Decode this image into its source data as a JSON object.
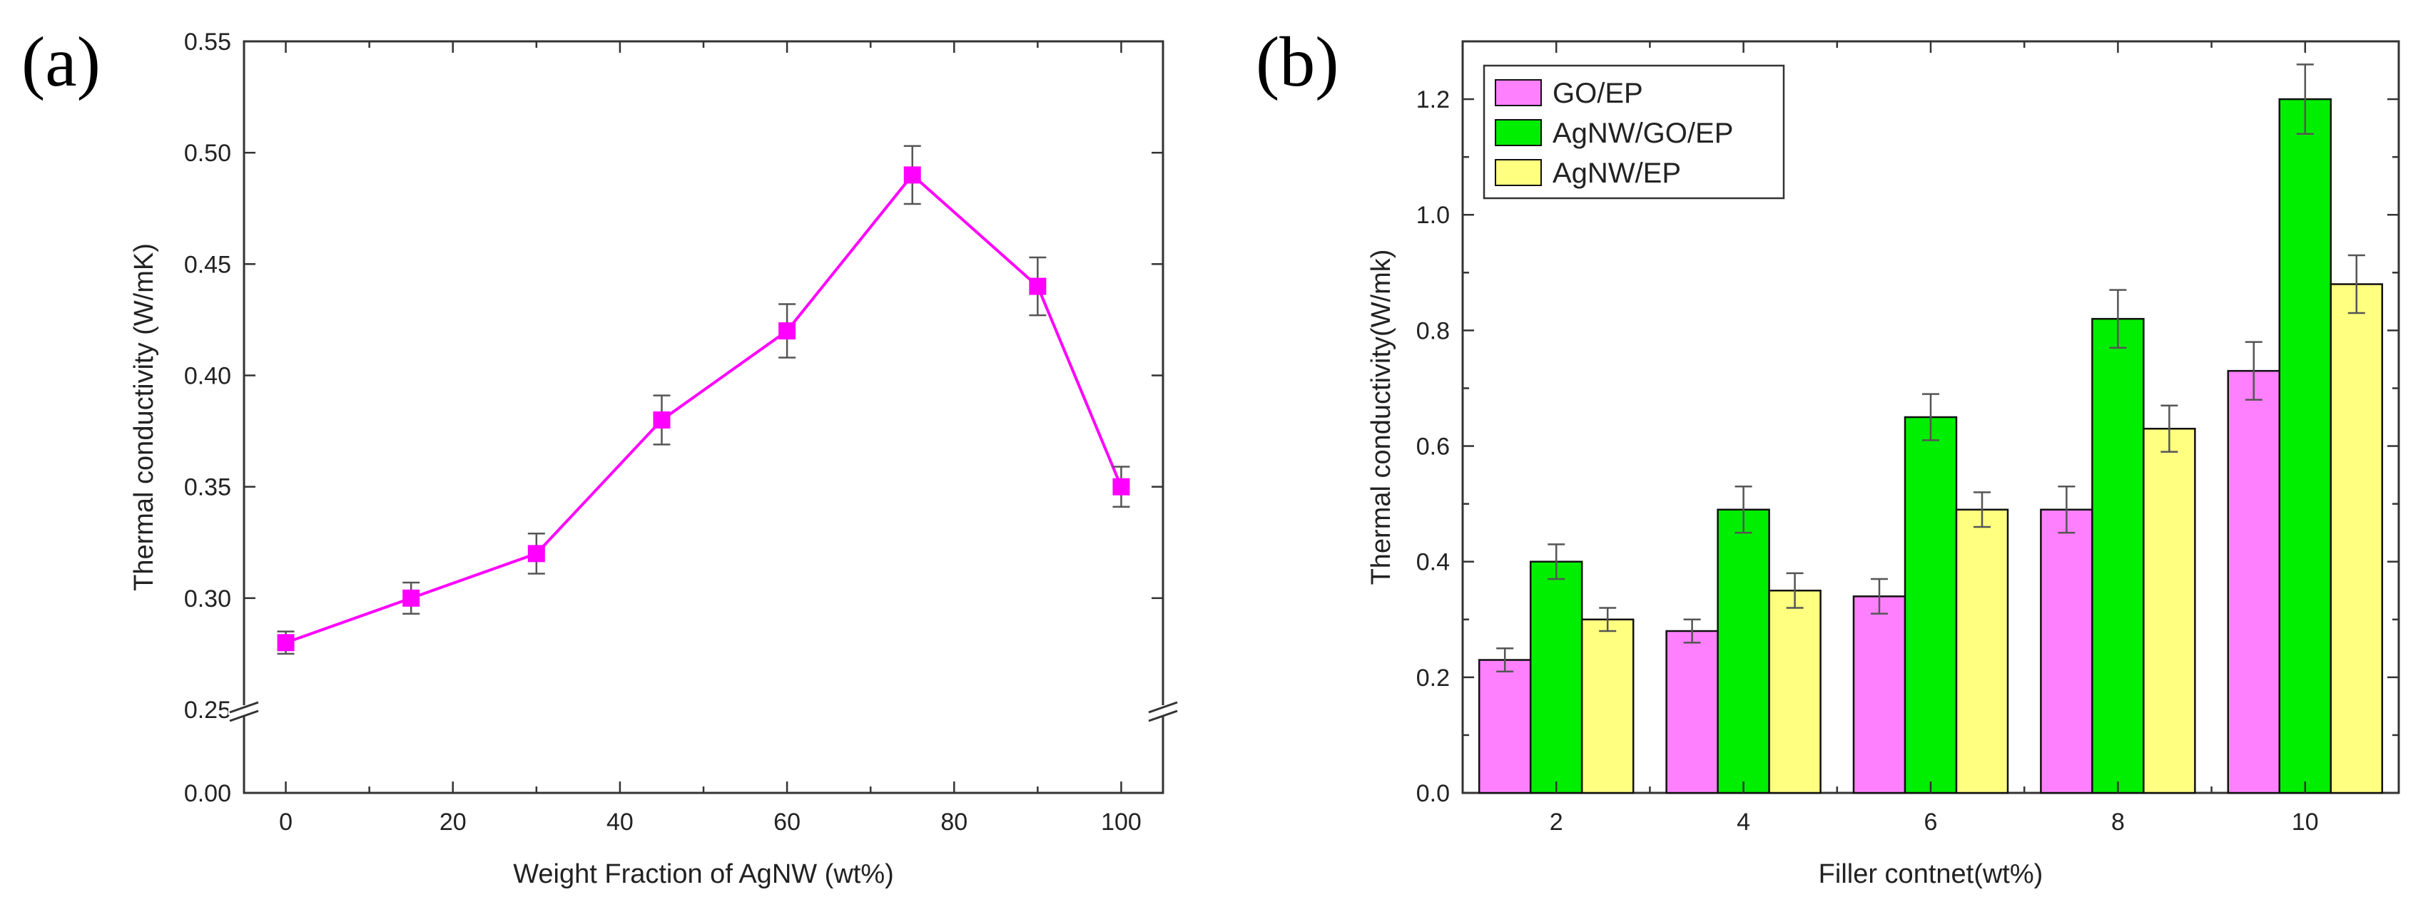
{
  "colors": {
    "series_a": "#ff00ff",
    "GO/EP": "#ff80ff",
    "AgNW/GO/EP": "#00ee00",
    "AgNW/EP": "#ffff80",
    "errorbar": "#555555"
  },
  "chart_data": [
    {
      "panel": "(a)",
      "type": "line",
      "xlabel": "Weight Fraction of AgNW (wt%)",
      "ylabel": "Thermal conductivity (W/mK)",
      "x": [
        0,
        15,
        30,
        45,
        60,
        75,
        90,
        100
      ],
      "y": [
        0.28,
        0.3,
        0.32,
        0.38,
        0.42,
        0.49,
        0.44,
        0.35
      ],
      "yerr": [
        0.005,
        0.007,
        0.009,
        0.011,
        0.012,
        0.013,
        0.013,
        0.009
      ],
      "xlim": [
        -5,
        105
      ],
      "ylim": [
        0,
        0.55
      ],
      "y_axis_break": [
        0.25,
        0.25
      ],
      "xticks": [
        "0",
        "20",
        "40",
        "60",
        "80",
        "100"
      ],
      "yticks": [
        "0.00",
        "0.25",
        "0.30",
        "0.35",
        "0.40",
        "0.45",
        "0.50",
        "0.55"
      ],
      "marker": "square"
    },
    {
      "panel": "(b)",
      "type": "bar",
      "xlabel": "Filler contnet(wt%)",
      "ylabel": "Thermal conductivity(W/mk)",
      "categories": [
        "2",
        "4",
        "6",
        "8",
        "10"
      ],
      "series": [
        {
          "name": "GO/EP",
          "values": [
            0.23,
            0.28,
            0.34,
            0.49,
            0.73
          ],
          "errors": [
            0.02,
            0.02,
            0.03,
            0.04,
            0.05
          ]
        },
        {
          "name": "AgNW/GO/EP",
          "values": [
            0.4,
            0.49,
            0.65,
            0.82,
            1.2
          ],
          "errors": [
            0.03,
            0.04,
            0.04,
            0.05,
            0.06
          ]
        },
        {
          "name": "AgNW/EP",
          "values": [
            0.3,
            0.35,
            0.49,
            0.63,
            0.88
          ],
          "errors": [
            0.02,
            0.03,
            0.03,
            0.04,
            0.05
          ]
        }
      ],
      "ylim": [
        0,
        1.3
      ],
      "yticks": [
        "0.0",
        "0.2",
        "0.4",
        "0.6",
        "0.8",
        "1.0",
        "1.2"
      ],
      "legend_position": "top-left"
    }
  ]
}
